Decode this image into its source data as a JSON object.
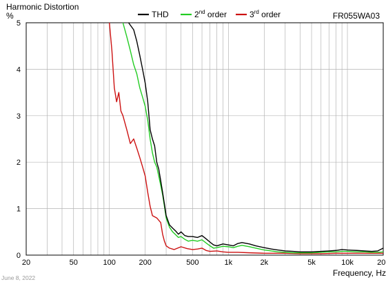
{
  "chart_data": {
    "type": "line",
    "title": "Harmonic Distortion",
    "ylabel": "%",
    "xlabel": "Frequency, Hz",
    "model": "FR055WA03",
    "date": "June 8, 2022",
    "x_scale": "log",
    "xlim": [
      20,
      20000
    ],
    "ylim": [
      0,
      5
    ],
    "grid": true,
    "legend_position": "top",
    "x_tick_labels": [
      {
        "value": 20,
        "label": "20"
      },
      {
        "value": 50,
        "label": "50"
      },
      {
        "value": 100,
        "label": "100"
      },
      {
        "value": 200,
        "label": "200"
      },
      {
        "value": 500,
        "label": "500"
      },
      {
        "value": 1000,
        "label": "1k"
      },
      {
        "value": 2000,
        "label": "2k"
      },
      {
        "value": 5000,
        "label": "5k"
      },
      {
        "value": 10000,
        "label": "10k"
      },
      {
        "value": 20000,
        "label": "20k"
      }
    ],
    "y_tick_labels": [
      {
        "value": 0,
        "label": "0"
      },
      {
        "value": 1,
        "label": "1"
      },
      {
        "value": 2,
        "label": "2"
      },
      {
        "value": 3,
        "label": "3"
      },
      {
        "value": 4,
        "label": "4"
      },
      {
        "value": 5,
        "label": "5"
      }
    ],
    "series": [
      {
        "name": "THD",
        "legend_main": "THD",
        "legend_sup": "",
        "legend_tail": "",
        "color": "#000000",
        "points": [
          [
            145,
            5.0
          ],
          [
            160,
            4.85
          ],
          [
            170,
            4.6
          ],
          [
            180,
            4.3
          ],
          [
            190,
            4.0
          ],
          [
            200,
            3.7
          ],
          [
            210,
            3.3
          ],
          [
            220,
            2.7
          ],
          [
            230,
            2.5
          ],
          [
            240,
            2.35
          ],
          [
            250,
            2.0
          ],
          [
            260,
            1.85
          ],
          [
            270,
            1.6
          ],
          [
            280,
            1.35
          ],
          [
            290,
            1.1
          ],
          [
            300,
            0.85
          ],
          [
            320,
            0.65
          ],
          [
            340,
            0.58
          ],
          [
            360,
            0.52
          ],
          [
            380,
            0.45
          ],
          [
            400,
            0.5
          ],
          [
            430,
            0.42
          ],
          [
            460,
            0.4
          ],
          [
            500,
            0.4
          ],
          [
            550,
            0.38
          ],
          [
            600,
            0.42
          ],
          [
            650,
            0.35
          ],
          [
            700,
            0.28
          ],
          [
            750,
            0.22
          ],
          [
            800,
            0.2
          ],
          [
            900,
            0.24
          ],
          [
            1000,
            0.22
          ],
          [
            1100,
            0.2
          ],
          [
            1200,
            0.25
          ],
          [
            1300,
            0.27
          ],
          [
            1500,
            0.24
          ],
          [
            1700,
            0.2
          ],
          [
            2000,
            0.16
          ],
          [
            2300,
            0.13
          ],
          [
            2600,
            0.11
          ],
          [
            3000,
            0.09
          ],
          [
            3500,
            0.08
          ],
          [
            4000,
            0.07
          ],
          [
            5000,
            0.07
          ],
          [
            6000,
            0.08
          ],
          [
            7000,
            0.09
          ],
          [
            8000,
            0.1
          ],
          [
            9000,
            0.12
          ],
          [
            10000,
            0.11
          ],
          [
            12000,
            0.1
          ],
          [
            14000,
            0.09
          ],
          [
            16000,
            0.08
          ],
          [
            18000,
            0.09
          ],
          [
            20000,
            0.15
          ]
        ]
      },
      {
        "name": "2nd order",
        "legend_main": "2",
        "legend_sup": "nd",
        "legend_tail": " order",
        "color": "#22cc22",
        "points": [
          [
            130,
            5.0
          ],
          [
            140,
            4.7
          ],
          [
            150,
            4.4
          ],
          [
            160,
            4.1
          ],
          [
            170,
            3.9
          ],
          [
            180,
            3.6
          ],
          [
            190,
            3.4
          ],
          [
            200,
            3.2
          ],
          [
            210,
            2.9
          ],
          [
            220,
            2.5
          ],
          [
            230,
            2.2
          ],
          [
            240,
            2.0
          ],
          [
            250,
            1.9
          ],
          [
            260,
            1.7
          ],
          [
            270,
            1.5
          ],
          [
            280,
            1.3
          ],
          [
            290,
            1.05
          ],
          [
            300,
            0.8
          ],
          [
            320,
            0.6
          ],
          [
            340,
            0.5
          ],
          [
            360,
            0.44
          ],
          [
            380,
            0.38
          ],
          [
            400,
            0.4
          ],
          [
            430,
            0.34
          ],
          [
            460,
            0.3
          ],
          [
            500,
            0.32
          ],
          [
            550,
            0.3
          ],
          [
            600,
            0.33
          ],
          [
            650,
            0.26
          ],
          [
            700,
            0.2
          ],
          [
            750,
            0.15
          ],
          [
            800,
            0.16
          ],
          [
            900,
            0.19
          ],
          [
            1000,
            0.18
          ],
          [
            1100,
            0.16
          ],
          [
            1200,
            0.19
          ],
          [
            1300,
            0.21
          ],
          [
            1500,
            0.18
          ],
          [
            1700,
            0.15
          ],
          [
            2000,
            0.11
          ],
          [
            2300,
            0.09
          ],
          [
            2600,
            0.07
          ],
          [
            3000,
            0.06
          ],
          [
            3500,
            0.05
          ],
          [
            4000,
            0.05
          ],
          [
            5000,
            0.05
          ],
          [
            6000,
            0.06
          ],
          [
            7000,
            0.07
          ],
          [
            8000,
            0.07
          ],
          [
            9000,
            0.08
          ],
          [
            10000,
            0.08
          ],
          [
            12000,
            0.07
          ],
          [
            14000,
            0.07
          ],
          [
            16000,
            0.06
          ],
          [
            18000,
            0.06
          ],
          [
            20000,
            0.07
          ]
        ]
      },
      {
        "name": "3rd order",
        "legend_main": "3",
        "legend_sup": "rd",
        "legend_tail": " order",
        "color": "#cc1111",
        "points": [
          [
            100,
            5.0
          ],
          [
            105,
            4.4
          ],
          [
            110,
            3.6
          ],
          [
            115,
            3.3
          ],
          [
            120,
            3.5
          ],
          [
            125,
            3.1
          ],
          [
            130,
            3.0
          ],
          [
            140,
            2.7
          ],
          [
            150,
            2.4
          ],
          [
            160,
            2.5
          ],
          [
            170,
            2.3
          ],
          [
            180,
            2.1
          ],
          [
            190,
            1.9
          ],
          [
            200,
            1.7
          ],
          [
            210,
            1.35
          ],
          [
            220,
            1.05
          ],
          [
            230,
            0.85
          ],
          [
            250,
            0.8
          ],
          [
            270,
            0.7
          ],
          [
            280,
            0.45
          ],
          [
            290,
            0.3
          ],
          [
            300,
            0.2
          ],
          [
            320,
            0.15
          ],
          [
            350,
            0.12
          ],
          [
            400,
            0.18
          ],
          [
            450,
            0.14
          ],
          [
            500,
            0.12
          ],
          [
            550,
            0.13
          ],
          [
            600,
            0.15
          ],
          [
            650,
            0.1
          ],
          [
            700,
            0.08
          ],
          [
            800,
            0.09
          ],
          [
            900,
            0.07
          ],
          [
            1000,
            0.06
          ],
          [
            1200,
            0.06
          ],
          [
            1500,
            0.05
          ],
          [
            2000,
            0.04
          ],
          [
            3000,
            0.04
          ],
          [
            4000,
            0.03
          ],
          [
            6000,
            0.03
          ],
          [
            8000,
            0.04
          ],
          [
            10000,
            0.04
          ],
          [
            14000,
            0.04
          ],
          [
            20000,
            0.04
          ]
        ]
      }
    ]
  }
}
